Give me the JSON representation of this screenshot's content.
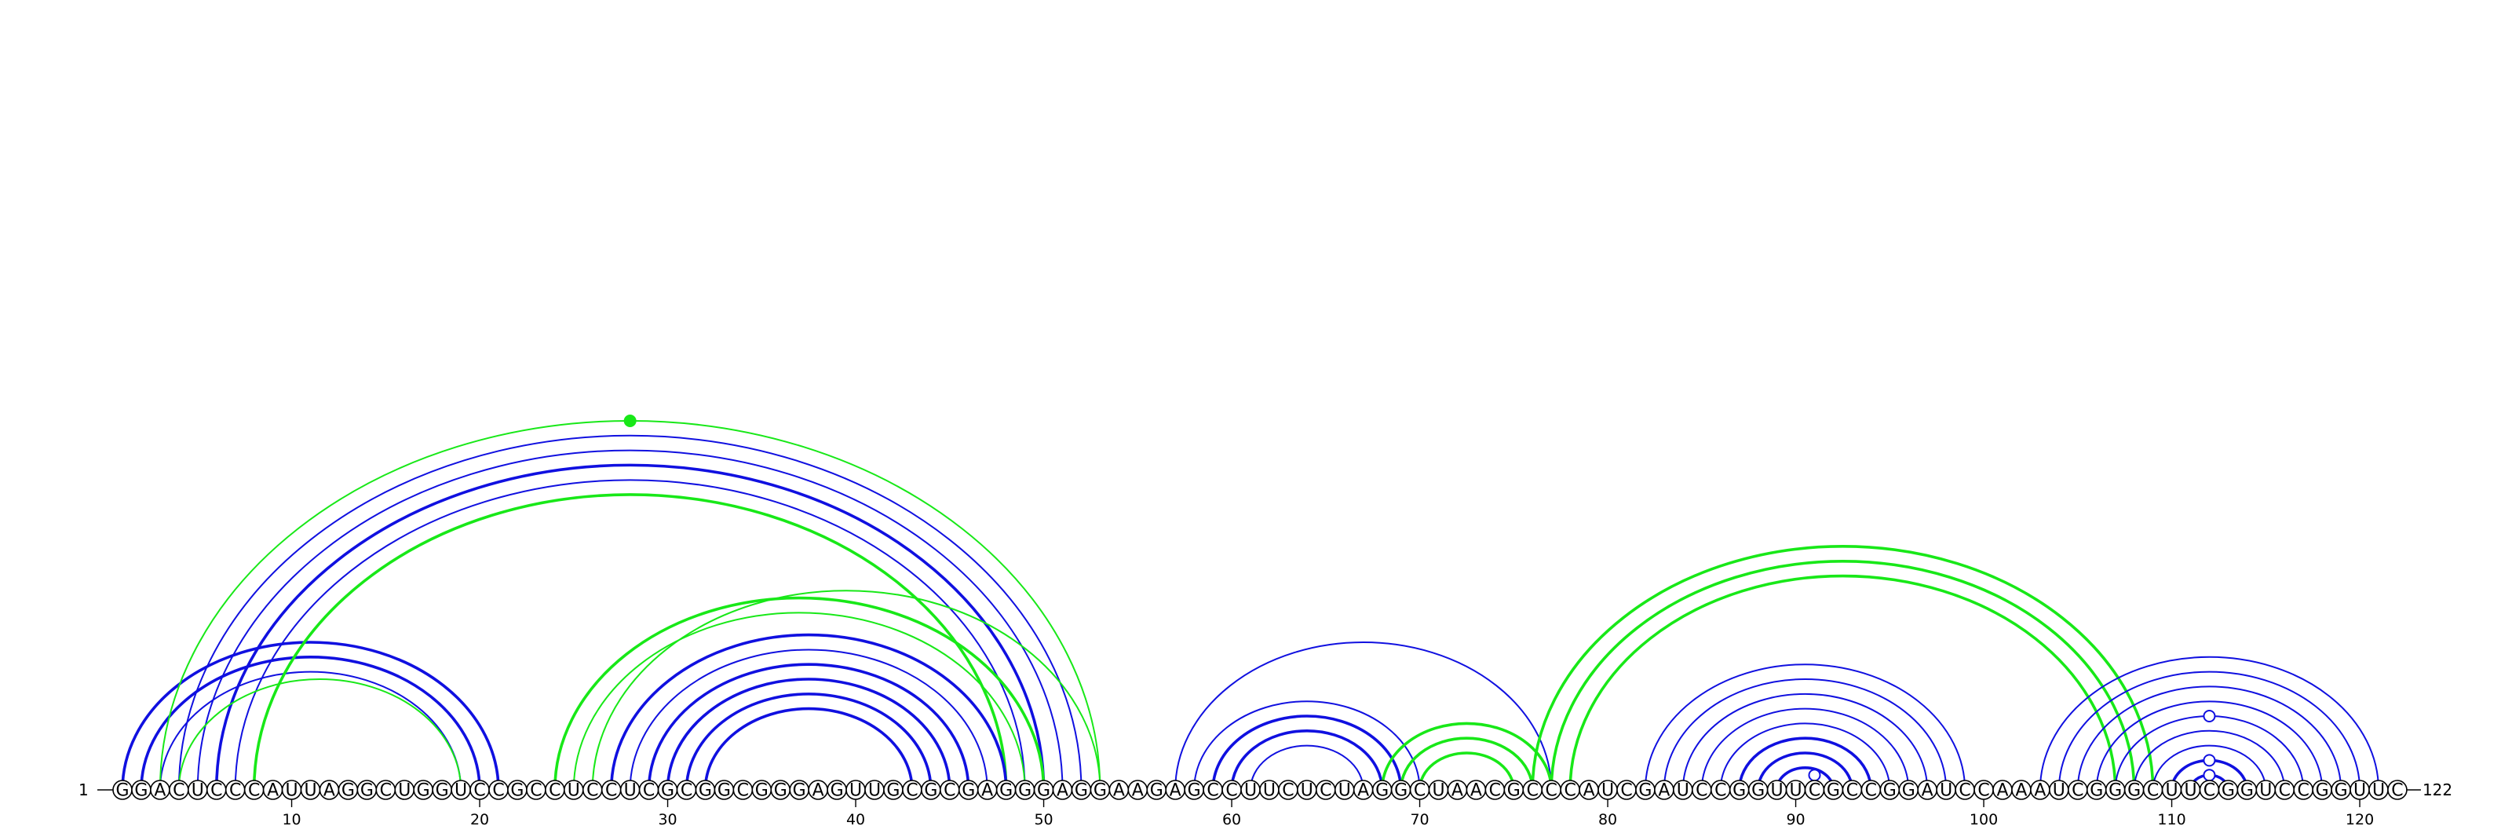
{
  "chart_data": {
    "type": "arc",
    "sequence": "GGACUCCCAUUAGGCUGGUCCGCCUCCUCGCGGCGGGAGUUGCGCGAGGGAGGAAGAGCCUUCUCUAGGCUAACGCCCAUCGAUCCGGUUCGCCGGAUCCAAAUCGGGCUUCGGUCCGGUUC",
    "length": 122,
    "start_label": "1",
    "end_label": "122",
    "ticks": [
      10,
      20,
      30,
      40,
      50,
      60,
      70,
      80,
      90,
      100,
      110,
      120
    ],
    "colors": {
      "blue": "#1010e0",
      "green": "#18e818",
      "text": "#000000"
    },
    "arcs": [
      {
        "i": 1,
        "j": 21,
        "color": "blue",
        "width": "thick"
      },
      {
        "i": 2,
        "j": 20,
        "color": "blue",
        "width": "thick"
      },
      {
        "i": 3,
        "j": 19,
        "color": "blue",
        "width": "thin"
      },
      {
        "i": 3,
        "j": 53,
        "color": "green",
        "width": "thin"
      },
      {
        "i": 4,
        "j": 52,
        "color": "blue",
        "width": "thin"
      },
      {
        "i": 5,
        "j": 51,
        "color": "blue",
        "width": "thin"
      },
      {
        "i": 6,
        "j": 50,
        "color": "blue",
        "width": "thick"
      },
      {
        "i": 7,
        "j": 49,
        "color": "blue",
        "width": "thin"
      },
      {
        "i": 8,
        "j": 48,
        "color": "green",
        "width": "thick"
      },
      {
        "i": 4,
        "j": 19,
        "color": "green",
        "width": "thin"
      },
      {
        "i": 24,
        "j": 50,
        "color": "green",
        "width": "thick"
      },
      {
        "i": 25,
        "j": 49,
        "color": "green",
        "width": "thin"
      },
      {
        "i": 26,
        "j": 53,
        "color": "green",
        "width": "thin"
      },
      {
        "i": 27,
        "j": 48,
        "color": "blue",
        "width": "thick"
      },
      {
        "i": 28,
        "j": 47,
        "color": "blue",
        "width": "thin"
      },
      {
        "i": 29,
        "j": 46,
        "color": "blue",
        "width": "thick"
      },
      {
        "i": 30,
        "j": 45,
        "color": "blue",
        "width": "thick"
      },
      {
        "i": 31,
        "j": 44,
        "color": "blue",
        "width": "thick"
      },
      {
        "i": 32,
        "j": 43,
        "color": "blue",
        "width": "thick"
      },
      {
        "i": 57,
        "j": 77,
        "color": "blue",
        "width": "thin"
      },
      {
        "i": 58,
        "j": 70,
        "color": "blue",
        "width": "thin"
      },
      {
        "i": 59,
        "j": 69,
        "color": "blue",
        "width": "thick"
      },
      {
        "i": 60,
        "j": 68,
        "color": "blue",
        "width": "thick"
      },
      {
        "i": 61,
        "j": 67,
        "color": "blue",
        "width": "thin"
      },
      {
        "i": 68,
        "j": 77,
        "color": "green",
        "width": "thick"
      },
      {
        "i": 69,
        "j": 76,
        "color": "green",
        "width": "thick"
      },
      {
        "i": 70,
        "j": 75,
        "color": "green",
        "width": "thick"
      },
      {
        "i": 76,
        "j": 109,
        "color": "green",
        "width": "thick"
      },
      {
        "i": 77,
        "j": 108,
        "color": "green",
        "width": "thick"
      },
      {
        "i": 78,
        "j": 107,
        "color": "green",
        "width": "thick"
      },
      {
        "i": 82,
        "j": 99,
        "color": "blue",
        "width": "thin"
      },
      {
        "i": 83,
        "j": 98,
        "color": "blue",
        "width": "thin"
      },
      {
        "i": 84,
        "j": 97,
        "color": "blue",
        "width": "thin"
      },
      {
        "i": 85,
        "j": 96,
        "color": "blue",
        "width": "thin"
      },
      {
        "i": 86,
        "j": 95,
        "color": "blue",
        "width": "thin"
      },
      {
        "i": 87,
        "j": 94,
        "color": "blue",
        "width": "thick"
      },
      {
        "i": 88,
        "j": 93,
        "color": "blue",
        "width": "thick"
      },
      {
        "i": 89,
        "j": 92,
        "color": "blue",
        "width": "thick"
      },
      {
        "i": 103,
        "j": 121,
        "color": "blue",
        "width": "thin"
      },
      {
        "i": 104,
        "j": 120,
        "color": "blue",
        "width": "thin"
      },
      {
        "i": 105,
        "j": 119,
        "color": "blue",
        "width": "thin"
      },
      {
        "i": 106,
        "j": 118,
        "color": "blue",
        "width": "thin"
      },
      {
        "i": 107,
        "j": 117,
        "color": "blue",
        "width": "thin"
      },
      {
        "i": 108,
        "j": 116,
        "color": "blue",
        "width": "thin"
      },
      {
        "i": 109,
        "j": 115,
        "color": "blue",
        "width": "thin"
      },
      {
        "i": 110,
        "j": 114,
        "color": "blue",
        "width": "thick"
      },
      {
        "i": 111,
        "j": 113,
        "color": "blue",
        "width": "thick"
      }
    ],
    "markers": [
      {
        "i": 3,
        "j": 53,
        "color": "green",
        "style": "filled"
      },
      {
        "i": 90,
        "j": 92,
        "color": "blue",
        "style": "open"
      },
      {
        "i": 107,
        "j": 117,
        "color": "blue",
        "style": "open"
      },
      {
        "i": 110,
        "j": 114,
        "color": "blue",
        "style": "open"
      },
      {
        "i": 111,
        "j": 113,
        "color": "blue",
        "style": "open"
      }
    ]
  }
}
